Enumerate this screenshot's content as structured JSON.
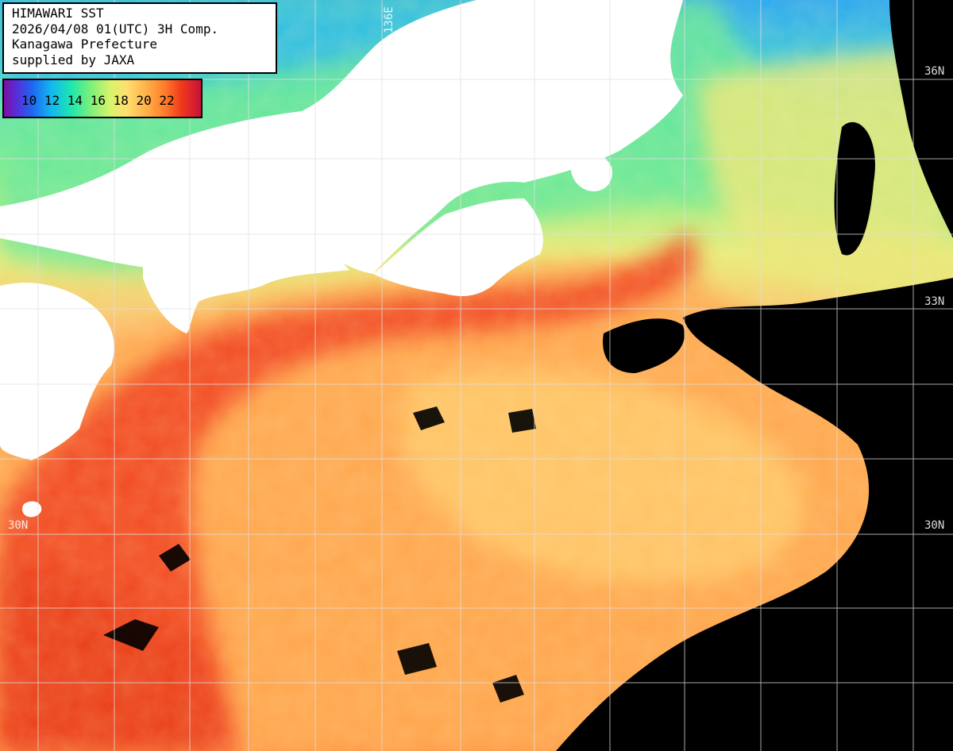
{
  "header": {
    "line1": "HIMAWARI SST",
    "line2": "2026/04/08 01(UTC) 3H Comp.",
    "line3": "Kanagawa Prefecture",
    "line4": "supplied by JAXA"
  },
  "legend": {
    "labels": "10 12 14 16 18 20 22",
    "units_min": 10,
    "units_max": 22
  },
  "grid": {
    "lat_36": "36N",
    "lat_33": "33N",
    "lat_30_left": "30N",
    "lat_30_right": "30N",
    "lon_136": "136E"
  },
  "colors": {
    "land": "#ffffff",
    "cloud_nodata": "#000000",
    "grid": "#e0e0e0",
    "cold_coast": "#38d0e8",
    "cool_green": "#7ef088",
    "mid_yellow": "#f0e878",
    "warm_orange": "#ff9a48",
    "kuroshio_red": "#f03c1c"
  }
}
